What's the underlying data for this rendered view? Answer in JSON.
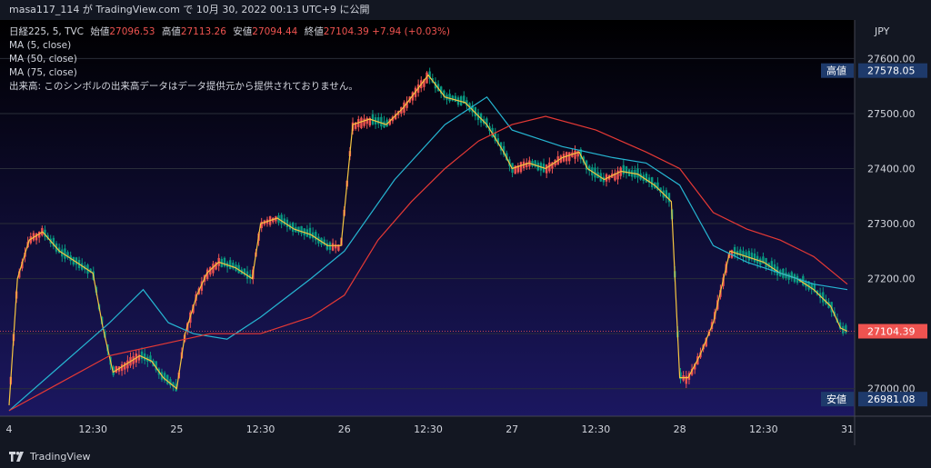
{
  "header": {
    "caption": "masa117_114 が TradingView.com で 10月 30, 2022 00:13 UTC+9 に公開"
  },
  "legend": {
    "symbol": "日経225, 5, TVC",
    "open_label": "始値",
    "open": "27096.53",
    "high_label": "高値",
    "high": "27113.26",
    "low_label": "安値",
    "low": "27094.44",
    "close_label": "終値",
    "close": "27104.39",
    "change": "+7.94 (+0.03%)",
    "ma1": "MA (5, close)",
    "ma2": "MA (50, close)",
    "ma3": "MA (75, close)",
    "volume_note": "出来高: このシンボルの出来高データはデータ提供元から提供されておりません。"
  },
  "price_axis": {
    "currency": "JPY",
    "ticks": [
      "27600.00",
      "27500.00",
      "27400.00",
      "27300.00",
      "27200.00",
      "27100.00",
      "27000.00"
    ],
    "high_label": "高値",
    "high_value": "27578.05",
    "low_label": "安値",
    "low_value": "26981.08",
    "last_value": "27104.39"
  },
  "time_axis": {
    "ticks": [
      "4",
      "12:30",
      "25",
      "12:30",
      "26",
      "12:30",
      "27",
      "12:30",
      "28",
      "12:30",
      "31"
    ]
  },
  "footer": {
    "brand": "TradingView"
  },
  "colors": {
    "up": "#ef5350",
    "down": "#089981",
    "ma5": "#f5c542",
    "ma50": "#26b6d2",
    "ma75": "#e53935",
    "bg_top": "#000000",
    "bg_bottom": "#1b1760"
  },
  "chart_data": {
    "type": "line",
    "ylim": [
      26950,
      27670
    ],
    "x": [
      0,
      0.5,
      1,
      1.5,
      2,
      2.5,
      3,
      3.5,
      4,
      4.5,
      5
    ],
    "x_tick_labels": [
      "4",
      "12:30",
      "25",
      "12:30",
      "26",
      "12:30",
      "27",
      "12:30",
      "28",
      "12:30",
      "31"
    ],
    "series": [
      {
        "name": "MA (5, close)",
        "points": [
          [
            0.0,
            26970
          ],
          [
            0.05,
            27200
          ],
          [
            0.12,
            27270
          ],
          [
            0.2,
            27285
          ],
          [
            0.3,
            27250
          ],
          [
            0.4,
            27230
          ],
          [
            0.5,
            27210
          ],
          [
            0.56,
            27110
          ],
          [
            0.62,
            27030
          ],
          [
            0.7,
            27045
          ],
          [
            0.78,
            27060
          ],
          [
            0.85,
            27050
          ],
          [
            0.92,
            27020
          ],
          [
            1.0,
            27000
          ],
          [
            1.05,
            27100
          ],
          [
            1.12,
            27170
          ],
          [
            1.18,
            27210
          ],
          [
            1.25,
            27230
          ],
          [
            1.35,
            27220
          ],
          [
            1.45,
            27200
          ],
          [
            1.5,
            27300
          ],
          [
            1.6,
            27310
          ],
          [
            1.7,
            27290
          ],
          [
            1.8,
            27280
          ],
          [
            1.9,
            27260
          ],
          [
            1.98,
            27260
          ],
          [
            2.05,
            27480
          ],
          [
            2.15,
            27490
          ],
          [
            2.25,
            27480
          ],
          [
            2.35,
            27510
          ],
          [
            2.45,
            27550
          ],
          [
            2.5,
            27570
          ],
          [
            2.6,
            27530
          ],
          [
            2.72,
            27520
          ],
          [
            2.85,
            27480
          ],
          [
            2.95,
            27430
          ],
          [
            3.0,
            27400
          ],
          [
            3.1,
            27410
          ],
          [
            3.2,
            27400
          ],
          [
            3.3,
            27420
          ],
          [
            3.4,
            27430
          ],
          [
            3.45,
            27400
          ],
          [
            3.55,
            27380
          ],
          [
            3.65,
            27395
          ],
          [
            3.75,
            27390
          ],
          [
            3.85,
            27370
          ],
          [
            3.95,
            27340
          ],
          [
            4.0,
            27020
          ],
          [
            4.05,
            27020
          ],
          [
            4.12,
            27060
          ],
          [
            4.2,
            27120
          ],
          [
            4.3,
            27250
          ],
          [
            4.4,
            27240
          ],
          [
            4.5,
            27230
          ],
          [
            4.6,
            27210
          ],
          [
            4.7,
            27200
          ],
          [
            4.8,
            27180
          ],
          [
            4.9,
            27150
          ],
          [
            4.96,
            27110
          ],
          [
            5.0,
            27104.39
          ]
        ]
      },
      {
        "name": "MA (50, close)",
        "points": [
          [
            0.0,
            26960
          ],
          [
            0.3,
            27040
          ],
          [
            0.6,
            27120
          ],
          [
            0.8,
            27180
          ],
          [
            0.95,
            27120
          ],
          [
            1.1,
            27100
          ],
          [
            1.3,
            27090
          ],
          [
            1.5,
            27130
          ],
          [
            1.8,
            27200
          ],
          [
            2.0,
            27250
          ],
          [
            2.3,
            27380
          ],
          [
            2.6,
            27480
          ],
          [
            2.85,
            27530
          ],
          [
            3.0,
            27470
          ],
          [
            3.3,
            27440
          ],
          [
            3.6,
            27420
          ],
          [
            3.8,
            27410
          ],
          [
            4.0,
            27370
          ],
          [
            4.2,
            27260
          ],
          [
            4.4,
            27230
          ],
          [
            4.6,
            27210
          ],
          [
            4.8,
            27190
          ],
          [
            5.0,
            27180
          ]
        ]
      },
      {
        "name": "MA (75, close)",
        "points": [
          [
            0.0,
            26960
          ],
          [
            0.3,
            27010
          ],
          [
            0.6,
            27060
          ],
          [
            0.9,
            27080
          ],
          [
            1.2,
            27100
          ],
          [
            1.5,
            27100
          ],
          [
            1.8,
            27130
          ],
          [
            2.0,
            27170
          ],
          [
            2.2,
            27270
          ],
          [
            2.4,
            27340
          ],
          [
            2.6,
            27400
          ],
          [
            2.8,
            27450
          ],
          [
            3.0,
            27480
          ],
          [
            3.2,
            27495
          ],
          [
            3.5,
            27470
          ],
          [
            3.8,
            27430
          ],
          [
            4.0,
            27400
          ],
          [
            4.2,
            27320
          ],
          [
            4.4,
            27290
          ],
          [
            4.6,
            27270
          ],
          [
            4.8,
            27240
          ],
          [
            5.0,
            27190
          ]
        ]
      }
    ]
  }
}
